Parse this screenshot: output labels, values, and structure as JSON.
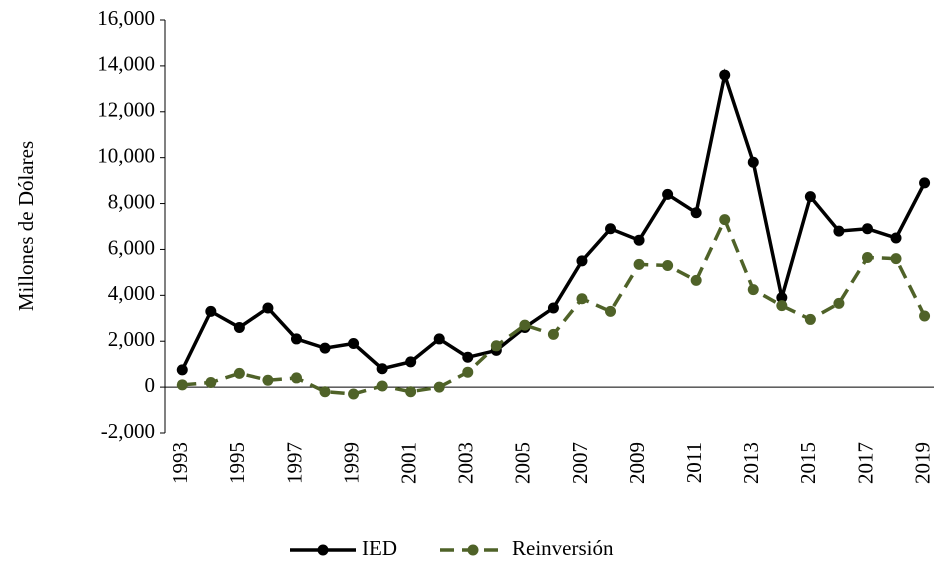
{
  "chart_data": {
    "type": "line",
    "y_label": "Millones de Dólares",
    "categories": [
      "1993",
      null,
      "1995",
      null,
      "1997",
      null,
      "1999",
      null,
      "2001",
      null,
      "2003",
      null,
      "2005",
      null,
      "2007",
      null,
      "2009",
      null,
      "2011",
      null,
      "2013",
      null,
      "2015",
      null,
      "2017",
      null,
      "2019"
    ],
    "series": [
      {
        "name": "IED",
        "color": "#000000",
        "dashed": false,
        "values": [
          750,
          3300,
          2600,
          3450,
          2100,
          1700,
          1900,
          800,
          1100,
          2100,
          1300,
          1600,
          2600,
          3450,
          5500,
          6900,
          6400,
          8400,
          7600,
          13600,
          9800,
          3900,
          8300,
          6800,
          6900,
          6500,
          8900
        ]
      },
      {
        "name": "Reinversión",
        "color": "#4f6228",
        "dashed": true,
        "values": [
          100,
          200,
          600,
          300,
          400,
          -200,
          -300,
          50,
          -200,
          0,
          650,
          1800,
          2700,
          2300,
          3850,
          3300,
          5350,
          5300,
          4650,
          7300,
          4250,
          3550,
          2950,
          3650,
          5650,
          5600,
          3100
        ]
      }
    ],
    "ylim": [
      -2000,
      16000
    ],
    "yticks": [
      {
        "value": -2000,
        "label": "-2,000"
      },
      0,
      {
        "value": 2000,
        "label": "2,000"
      },
      {
        "value": 4000,
        "label": "4,000"
      },
      {
        "value": 6000,
        "label": "6,000"
      },
      {
        "value": 8000,
        "label": "8,000"
      },
      {
        "value": 10000,
        "label": "10,000"
      },
      {
        "value": 12000,
        "label": "12,000"
      },
      {
        "value": 14000,
        "label": "14,000"
      },
      {
        "value": 16000,
        "label": "16,000"
      }
    ],
    "legend": "bottom"
  }
}
